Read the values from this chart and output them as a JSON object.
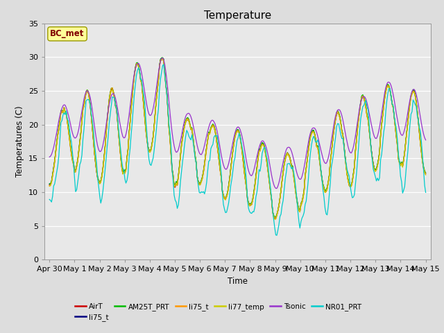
{
  "title": "Temperature",
  "ylabel": "Temperatures (C)",
  "xlabel": "Time",
  "annotation": "BC_met",
  "ylim": [
    0,
    35
  ],
  "fig_bg": "#dddddd",
  "plot_bg": "#e8e8e8",
  "legend_labels": [
    "AirT",
    "li75_t",
    "AM25T_PRT",
    "li75_t",
    "li77_temp",
    "Tsonic",
    "NR01_PRT"
  ],
  "legend_colors": [
    "#cc0000",
    "#000080",
    "#00bb00",
    "#ff9900",
    "#cccc00",
    "#9933cc",
    "#00cccc"
  ],
  "xtick_labels": [
    "Apr 30",
    "May 1",
    "May 2",
    "May 3",
    "May 4",
    "May 5",
    "May 6",
    "May 7",
    "May 8",
    "May 9",
    "May 10",
    "May 11",
    "May 12",
    "May 13",
    "May 14",
    "May 15"
  ],
  "ytick_vals": [
    0,
    5,
    10,
    15,
    20,
    25,
    30,
    35
  ],
  "grid_lines": [
    5,
    10,
    15,
    20,
    25,
    30
  ]
}
